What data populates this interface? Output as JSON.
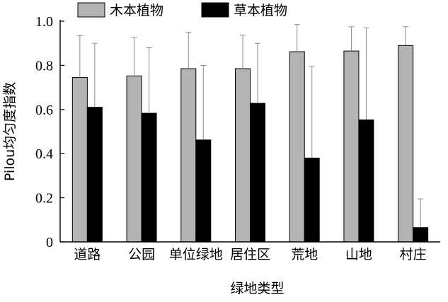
{
  "chart_data": {
    "type": "bar",
    "title": "",
    "xlabel": "绿地类型",
    "ylabel": "Pilou均匀度指数",
    "ylim": [
      0,
      1.0
    ],
    "yticks": [
      "0",
      "0.2",
      "0.4",
      "0.6",
      "0.8",
      "1.0"
    ],
    "ytick_values": [
      0,
      0.2,
      0.4,
      0.6,
      0.8,
      1.0
    ],
    "categories": [
      "道路",
      "公园",
      "单位绿地",
      "居住区",
      "荒地",
      "山地",
      "村庄"
    ],
    "legend_position": "top",
    "grid": false,
    "series": [
      {
        "name": "木本植物",
        "color": "#b3b3b3",
        "values": [
          0.745,
          0.752,
          0.785,
          0.785,
          0.862,
          0.865,
          0.89
        ],
        "error_upper": [
          0.935,
          0.925,
          0.95,
          0.937,
          0.985,
          0.975,
          0.975
        ]
      },
      {
        "name": "草本植物",
        "color": "#000000",
        "values": [
          0.61,
          0.583,
          0.462,
          0.628,
          0.38,
          0.553,
          0.065
        ],
        "error_upper": [
          0.9,
          0.88,
          0.8,
          0.9,
          0.795,
          0.97,
          0.195
        ]
      }
    ]
  }
}
